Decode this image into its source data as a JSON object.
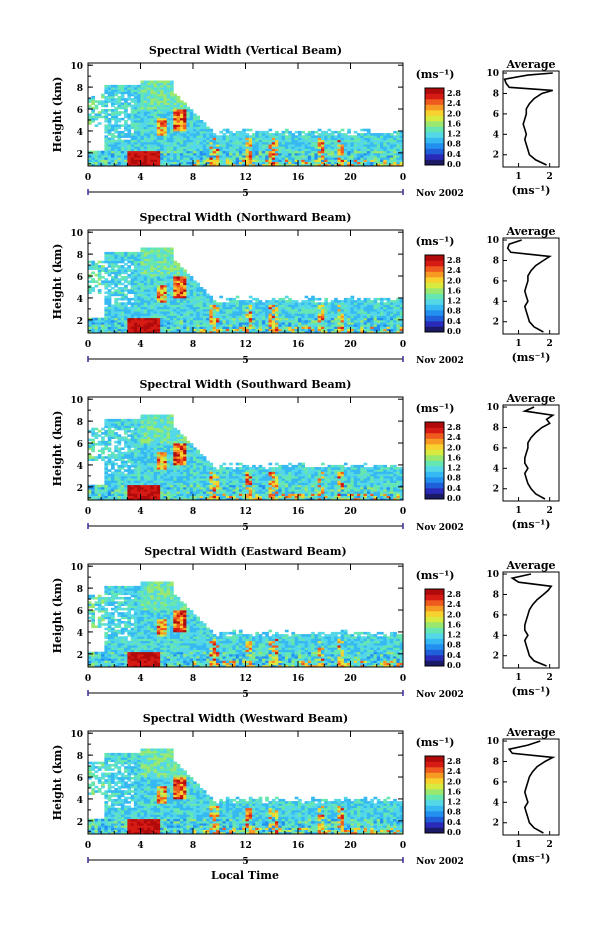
{
  "figure": {
    "x_axis_label": "Local Time",
    "month_label": "Nov 2002",
    "date_label": "5",
    "y_axis_label": "Height (km)",
    "colorbar_unit": "(ms⁻¹)",
    "avg_title": "Average",
    "avg_unit": "(ms⁻¹)"
  },
  "colors": {
    "colormap": [
      "#1a1a66",
      "#2a2ab8",
      "#1f5fd9",
      "#2390f0",
      "#36b8f2",
      "#54d8e8",
      "#66e6b0",
      "#9ae870",
      "#d8ea40",
      "#f7d12e",
      "#f79a24",
      "#ef5a1e",
      "#d61a14",
      "#b00a0a"
    ]
  },
  "chart_data": [
    {
      "type": "heatmap",
      "title": "Spectral Width (Vertical Beam)",
      "x_ticks": [
        "0",
        "4",
        "8",
        "12",
        "16",
        "20",
        "0"
      ],
      "x_range": [
        0,
        24
      ],
      "y_ticks": [
        "2",
        "4",
        "6",
        "8",
        "10"
      ],
      "y_range": [
        0.8,
        10.2
      ],
      "colorbar": {
        "range": [
          0.0,
          2.8
        ],
        "ticks": [
          "2.8",
          "2.4",
          "2.0",
          "1.6",
          "1.2",
          "0.8",
          "0.4",
          "0.0"
        ]
      },
      "average_profile": {
        "x_ticks": [
          "1",
          "2"
        ],
        "xlim": [
          0.5,
          2.3
        ],
        "y_ticks": [
          "2",
          "4",
          "6",
          "8",
          "10"
        ],
        "heights": [
          1.0,
          1.5,
          2.0,
          2.5,
          3.0,
          3.5,
          4.0,
          4.5,
          5.0,
          5.5,
          6.0,
          6.5,
          7.0,
          7.5,
          8.0,
          8.3,
          8.6,
          9.0,
          9.4,
          9.8,
          10.0
        ],
        "values": [
          1.9,
          1.55,
          1.35,
          1.3,
          1.25,
          1.2,
          1.25,
          1.2,
          1.15,
          1.2,
          1.25,
          1.25,
          1.35,
          1.5,
          1.75,
          2.1,
          0.7,
          0.6,
          0.55,
          1.3,
          2.1
        ]
      }
    },
    {
      "type": "heatmap",
      "title": "Spectral Width (Northward Beam)",
      "x_ticks": [
        "0",
        "4",
        "8",
        "12",
        "16",
        "20",
        "0"
      ],
      "x_range": [
        0,
        24
      ],
      "y_ticks": [
        "2",
        "4",
        "6",
        "8",
        "10"
      ],
      "y_range": [
        0.8,
        10.2
      ],
      "colorbar": {
        "range": [
          0.0,
          2.8
        ],
        "ticks": [
          "2.8",
          "2.4",
          "2.0",
          "1.6",
          "1.2",
          "0.8",
          "0.4",
          "0.0"
        ]
      },
      "average_profile": {
        "x_ticks": [
          "1",
          "2"
        ],
        "xlim": [
          0.5,
          2.3
        ],
        "y_ticks": [
          "2",
          "4",
          "6",
          "8",
          "10"
        ],
        "heights": [
          1.0,
          1.5,
          2.0,
          2.5,
          3.0,
          3.5,
          4.0,
          4.5,
          5.0,
          5.5,
          6.0,
          6.5,
          7.0,
          7.5,
          8.0,
          8.4,
          8.8,
          9.2,
          9.6,
          10.0
        ],
        "values": [
          1.8,
          1.5,
          1.35,
          1.3,
          1.25,
          1.2,
          1.3,
          1.25,
          1.2,
          1.25,
          1.3,
          1.3,
          1.4,
          1.55,
          1.8,
          2.0,
          0.75,
          0.65,
          0.7,
          1.1
        ]
      }
    },
    {
      "type": "heatmap",
      "title": "Spectral Width (Southward Beam)",
      "x_ticks": [
        "0",
        "4",
        "8",
        "12",
        "16",
        "20",
        "0"
      ],
      "x_range": [
        0,
        24
      ],
      "y_ticks": [
        "2",
        "4",
        "6",
        "8",
        "10"
      ],
      "y_range": [
        0.8,
        10.2
      ],
      "colorbar": {
        "range": [
          0.0,
          2.8
        ],
        "ticks": [
          "2.8",
          "2.4",
          "2.0",
          "1.6",
          "1.2",
          "0.8",
          "0.4",
          "0.0"
        ]
      },
      "average_profile": {
        "x_ticks": [
          "1",
          "2"
        ],
        "xlim": [
          0.5,
          2.3
        ],
        "y_ticks": [
          "2",
          "4",
          "6",
          "8",
          "10"
        ],
        "heights": [
          1.0,
          1.5,
          2.0,
          2.5,
          3.0,
          3.5,
          4.0,
          4.5,
          5.0,
          5.5,
          6.0,
          6.5,
          7.0,
          7.5,
          8.0,
          8.4,
          8.8,
          9.2,
          9.6,
          10.0
        ],
        "values": [
          1.85,
          1.55,
          1.4,
          1.3,
          1.25,
          1.2,
          1.3,
          1.2,
          1.2,
          1.25,
          1.3,
          1.3,
          1.4,
          1.55,
          1.75,
          2.0,
          1.9,
          2.1,
          1.2,
          1.5
        ]
      }
    },
    {
      "type": "heatmap",
      "title": "Spectral Width (Eastward Beam)",
      "x_ticks": [
        "0",
        "4",
        "8",
        "12",
        "16",
        "20",
        "0"
      ],
      "x_range": [
        0,
        24
      ],
      "y_ticks": [
        "2",
        "4",
        "6",
        "8",
        "10"
      ],
      "y_range": [
        0.8,
        10.2
      ],
      "colorbar": {
        "range": [
          0.0,
          2.8
        ],
        "ticks": [
          "2.8",
          "2.4",
          "2.0",
          "1.6",
          "1.2",
          "0.8",
          "0.4",
          "0.0"
        ]
      },
      "average_profile": {
        "x_ticks": [
          "1",
          "2"
        ],
        "xlim": [
          0.5,
          2.3
        ],
        "y_ticks": [
          "2",
          "4",
          "6",
          "8",
          "10"
        ],
        "heights": [
          1.0,
          1.5,
          2.0,
          2.5,
          3.0,
          3.5,
          4.0,
          4.5,
          5.0,
          5.5,
          6.0,
          6.5,
          7.0,
          7.5,
          8.0,
          8.4,
          8.8,
          9.2,
          9.6,
          10.0
        ],
        "values": [
          1.9,
          1.5,
          1.35,
          1.3,
          1.25,
          1.2,
          1.3,
          1.2,
          1.2,
          1.25,
          1.3,
          1.35,
          1.45,
          1.6,
          1.8,
          1.95,
          2.05,
          1.0,
          0.8,
          1.4
        ]
      }
    },
    {
      "type": "heatmap",
      "title": "Spectral Width (Westward Beam)",
      "x_ticks": [
        "0",
        "4",
        "8",
        "12",
        "16",
        "20",
        "0"
      ],
      "x_range": [
        0,
        24
      ],
      "y_ticks": [
        "2",
        "4",
        "6",
        "8",
        "10"
      ],
      "y_range": [
        0.8,
        10.2
      ],
      "colorbar": {
        "range": [
          0.0,
          2.8
        ],
        "ticks": [
          "2.8",
          "2.4",
          "2.0",
          "1.6",
          "1.2",
          "0.8",
          "0.4",
          "0.0"
        ]
      },
      "average_profile": {
        "x_ticks": [
          "1",
          "2"
        ],
        "xlim": [
          0.5,
          2.3
        ],
        "y_ticks": [
          "2",
          "4",
          "6",
          "8",
          "10"
        ],
        "heights": [
          1.0,
          1.5,
          2.0,
          2.5,
          3.0,
          3.5,
          4.0,
          4.5,
          5.0,
          5.5,
          6.0,
          6.5,
          7.0,
          7.5,
          8.0,
          8.4,
          8.8,
          9.2,
          9.6,
          10.0
        ],
        "values": [
          1.8,
          1.5,
          1.35,
          1.3,
          1.25,
          1.2,
          1.3,
          1.25,
          1.2,
          1.25,
          1.3,
          1.35,
          1.45,
          1.6,
          1.85,
          2.1,
          0.8,
          0.7,
          1.3,
          1.7
        ]
      }
    }
  ]
}
